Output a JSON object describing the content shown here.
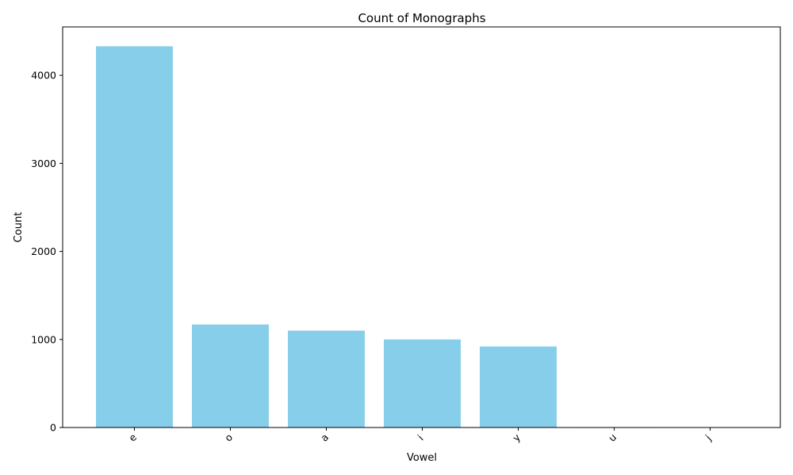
{
  "chart_data": {
    "type": "bar",
    "title": "Count of Monographs",
    "xlabel": "Vowel",
    "ylabel": "Count",
    "categories": [
      "e",
      "o",
      "a",
      "i",
      "y",
      "u",
      "j"
    ],
    "values": [
      4330,
      1170,
      1100,
      1000,
      920,
      5,
      3
    ],
    "ylim": [
      0,
      4550
    ],
    "yticks": [
      0,
      1000,
      2000,
      3000,
      4000
    ],
    "bar_color": "#87CEEB",
    "grid": false,
    "legend": "none",
    "xtick_rotation": 45
  }
}
